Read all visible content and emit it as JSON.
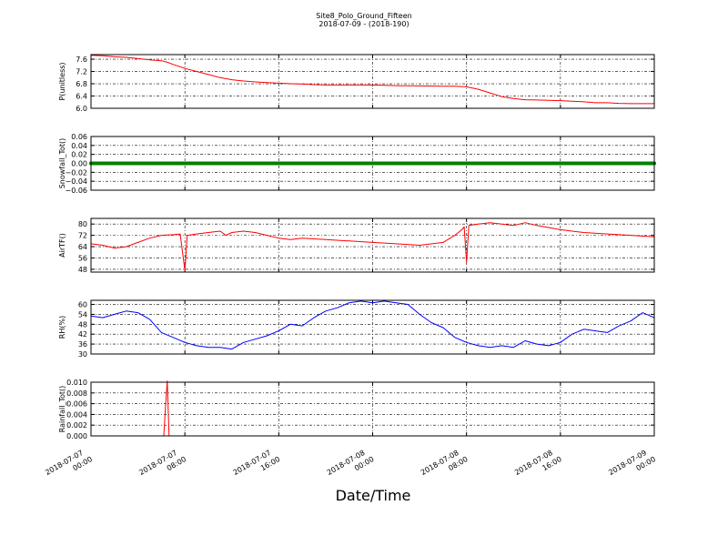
{
  "chart_data": {
    "type": "line",
    "title": "Site8_Polo_Ground_Fifteen",
    "subtitle": "2018-07-09 - (2018-190)",
    "xlabel": "Date/Time",
    "x_ticks": [
      {
        "hour": 0,
        "line1": "2018-07-07",
        "line2": "00:00"
      },
      {
        "hour": 8,
        "line1": "2018-07-07",
        "line2": "08:00"
      },
      {
        "hour": 16,
        "line1": "2018-07-07",
        "line2": "16:00"
      },
      {
        "hour": 24,
        "line1": "2018-07-08",
        "line2": "00:00"
      },
      {
        "hour": 32,
        "line1": "2018-07-08",
        "line2": "08:00"
      },
      {
        "hour": 40,
        "line1": "2018-07-08",
        "line2": "16:00"
      },
      {
        "hour": 48,
        "line1": "2018-07-09",
        "line2": "00:00"
      }
    ],
    "xlim": [
      0,
      48
    ],
    "grid": true,
    "panels": [
      {
        "ylabel": "P(unitless)",
        "color": "#ff0000",
        "ylim": [
          6.0,
          7.75
        ],
        "yticks": [
          "6.0",
          "6.4",
          "6.8",
          "7.2",
          "7.6"
        ],
        "x": [
          0,
          1,
          2,
          3,
          4,
          5,
          6,
          6.5,
          7,
          8,
          9,
          10,
          11,
          12,
          13,
          14,
          15,
          16,
          17,
          18,
          19,
          20,
          22,
          24,
          26,
          28,
          30,
          31,
          32,
          33,
          34,
          35,
          36,
          37,
          38,
          40,
          41,
          42,
          43,
          44,
          45,
          46,
          47,
          48
        ],
        "y": [
          7.73,
          7.71,
          7.68,
          7.66,
          7.62,
          7.58,
          7.55,
          7.5,
          7.43,
          7.3,
          7.2,
          7.1,
          7.0,
          6.93,
          6.89,
          6.86,
          6.84,
          6.82,
          6.8,
          6.79,
          6.77,
          6.76,
          6.76,
          6.76,
          6.74,
          6.73,
          6.72,
          6.72,
          6.7,
          6.62,
          6.5,
          6.38,
          6.32,
          6.28,
          6.27,
          6.25,
          6.23,
          6.21,
          6.18,
          6.18,
          6.16,
          6.15,
          6.15,
          6.15
        ]
      },
      {
        "ylabel": "Snowfall_Tot()",
        "color": "#008000",
        "ylim": [
          -0.06,
          0.06
        ],
        "yticks": [
          "−0.06",
          "−0.04",
          "−0.02",
          "0.00",
          "0.02",
          "0.04",
          "0.06"
        ],
        "x": [
          0,
          48
        ],
        "y": [
          0,
          0
        ]
      },
      {
        "ylabel": "AirTF()",
        "color": "#ff0000",
        "ylim": [
          46,
          84
        ],
        "yticks": [
          "48",
          "56",
          "64",
          "72",
          "80"
        ],
        "x": [
          0,
          1,
          2,
          3,
          4,
          5,
          6,
          7,
          7.6,
          7.8,
          8.0,
          8.2,
          9,
          10,
          11,
          11.5,
          12,
          13,
          14,
          15,
          16,
          17,
          18,
          20,
          22,
          24,
          26,
          28,
          30,
          31,
          31.6,
          31.8,
          32.0,
          32.2,
          33,
          34,
          35,
          36,
          37,
          38,
          40,
          41,
          42,
          44,
          46,
          48
        ],
        "y": [
          66,
          65,
          63,
          64,
          67,
          70,
          72,
          72.5,
          73,
          60,
          47,
          72,
          73,
          74,
          75,
          72,
          74,
          75,
          74,
          72,
          70,
          69,
          70,
          69,
          68,
          67,
          66,
          65,
          67,
          72,
          76,
          78,
          53,
          79,
          80,
          81,
          80,
          79,
          81,
          79,
          76,
          75,
          74,
          73,
          72,
          71
        ]
      },
      {
        "ylabel": "RH(%)",
        "color": "#0000ff",
        "ylim": [
          30,
          62.5
        ],
        "yticks": [
          "30",
          "36",
          "42",
          "48",
          "54",
          "60"
        ],
        "x": [
          0,
          1,
          2,
          3,
          4,
          5,
          6,
          7,
          8,
          9,
          10,
          11,
          12,
          13,
          14,
          15,
          16,
          17,
          18,
          19,
          20,
          21,
          22,
          23,
          24,
          25,
          26,
          27,
          28,
          29,
          30,
          31,
          32,
          33,
          34,
          35,
          36,
          37,
          38,
          39,
          40,
          41,
          42,
          43,
          44,
          45,
          46,
          47,
          48
        ],
        "y": [
          53,
          52,
          54,
          56,
          55,
          51,
          43,
          40,
          37,
          35,
          34,
          34,
          33,
          37,
          39,
          41,
          44,
          48,
          47,
          52,
          56,
          58,
          61,
          62,
          61,
          62,
          61,
          60,
          54,
          49,
          46,
          40,
          37,
          35,
          34,
          35,
          34,
          38,
          36,
          35,
          37,
          42,
          45,
          44,
          43,
          47,
          50,
          55,
          52
        ]
      },
      {
        "ylabel": "Rainfall_Tot()",
        "color": "#ff0000",
        "ylim": [
          0,
          0.01
        ],
        "yticks": [
          "0.000",
          "0.002",
          "0.004",
          "0.006",
          "0.008",
          "0.010"
        ],
        "x": [
          0,
          6.2,
          6.35,
          6.5,
          6.65,
          48
        ],
        "y": [
          0,
          0,
          0.0055,
          0.0102,
          0,
          0
        ]
      }
    ]
  }
}
